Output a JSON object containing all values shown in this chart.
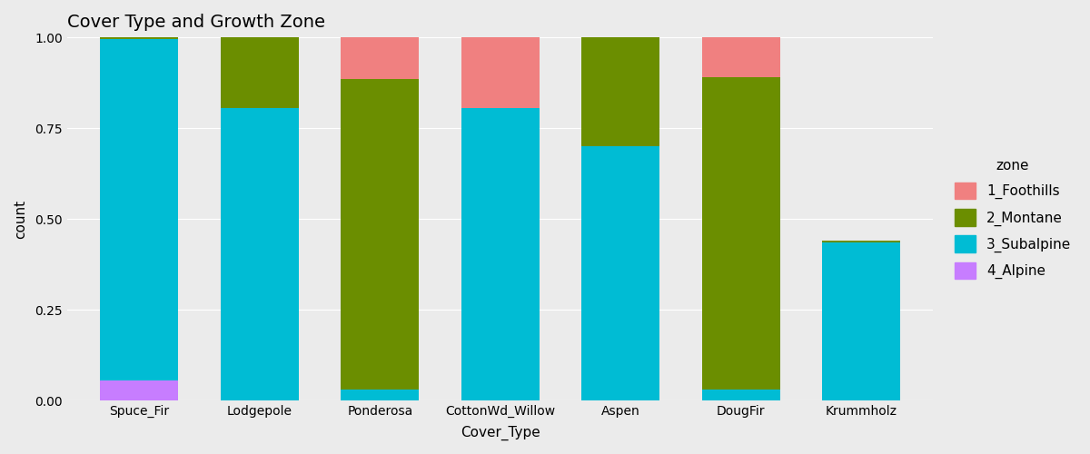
{
  "title": "Cover Type and Growth Zone",
  "xlabel": "Cover_Type",
  "ylabel": "count",
  "categories": [
    "Spuce_Fir",
    "Lodgepole",
    "Ponderosa",
    "CottonWd_Willow",
    "Aspen",
    "DougFir",
    "Krummholz"
  ],
  "zones": [
    "1_Foothills",
    "2_Montane",
    "3_Subalpine",
    "4_Alpine"
  ],
  "zone_colors": {
    "1_Foothills": "#F08080",
    "2_Montane": "#6B8E00",
    "3_Subalpine": "#00BCD4",
    "4_Alpine": "#C77DFF"
  },
  "data": {
    "4_Alpine": [
      0.055,
      0.0,
      0.0,
      0.0,
      0.0,
      0.0,
      0.0
    ],
    "3_Subalpine": [
      0.94,
      0.805,
      0.03,
      0.805,
      0.7,
      0.03,
      0.435
    ],
    "2_Montane": [
      0.005,
      0.195,
      0.855,
      0.0,
      0.3,
      0.86,
      0.005
    ],
    "1_Foothills": [
      0.0,
      0.0,
      0.115,
      0.195,
      0.0,
      0.11,
      0.0
    ]
  },
  "background_color": "#EBEBEB",
  "grid_color": "white",
  "bar_width": 0.65,
  "legend_title": "zone",
  "title_fontsize": 14,
  "axis_fontsize": 11,
  "tick_fontsize": 10
}
